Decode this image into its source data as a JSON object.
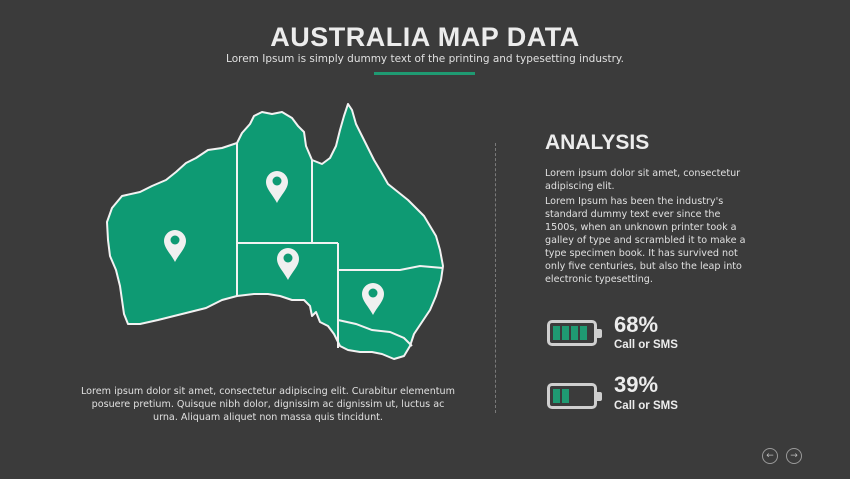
{
  "header": {
    "title": "AUSTRALIA MAP DATA",
    "subtitle": "Lorem Ipsum is simply dummy text of the printing and typesetting industry."
  },
  "colors": {
    "accent": "#1f9a72",
    "map_fill": "#0e9a73",
    "background": "#3b3b3b"
  },
  "map": {
    "regions": [
      "Western Australia",
      "Northern Territory",
      "South Australia",
      "Queensland",
      "New South Wales",
      "Victoria"
    ],
    "pins": [
      "location-pin-icon",
      "location-pin-icon",
      "location-pin-icon",
      "location-pin-icon"
    ],
    "caption": "Lorem ipsum dolor sit amet, consectetur adipiscing elit. Curabitur elementum posuere pretium. Quisque nibh dolor, dignissim ac dignissim ut, luctus ac urna. Aliquam aliquet non massa quis tincidunt."
  },
  "analysis": {
    "title": "ANALYSIS",
    "paragraph1": "Lorem ipsum dolor sit amet, consectetur adipiscing elit.",
    "paragraph2": "Lorem Ipsum has been the industry's standard dummy text ever since the 1500s, when an unknown printer took a galley of type and scrambled it to make a type specimen book. It has survived not only five centuries, but also the leap into electronic typesetting.",
    "stats": [
      {
        "value": "68%",
        "percent": 68,
        "label": "Call or SMS",
        "filled_cells": 4
      },
      {
        "value": "39%",
        "percent": 39,
        "label": "Call or SMS",
        "filled_cells": 2
      }
    ]
  },
  "nav": {
    "prev_icon": "arrow-left-circle-icon",
    "next_icon": "arrow-right-circle-icon",
    "prev": "←",
    "next": "→"
  }
}
